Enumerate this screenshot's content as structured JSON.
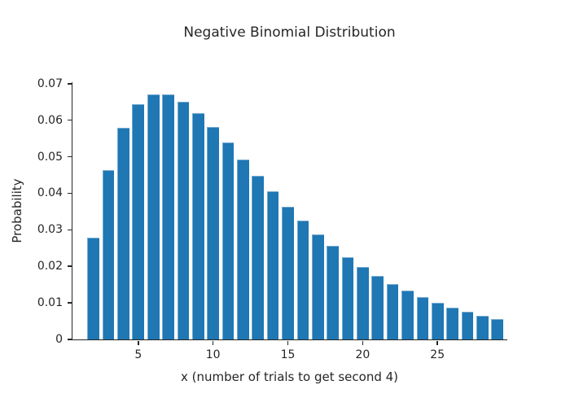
{
  "chart_data": {
    "type": "bar",
    "title": "Negative Binomial Distribution",
    "xlabel": "x (number of trials to get second 4)",
    "ylabel": "Probability",
    "x": [
      2,
      3,
      4,
      5,
      6,
      7,
      8,
      9,
      10,
      11,
      12,
      13,
      14,
      15,
      16,
      17,
      18,
      19,
      20,
      21,
      22,
      23,
      24,
      25,
      26,
      27,
      28,
      29
    ],
    "values": [
      0.02778,
      0.0463,
      0.05787,
      0.0643,
      0.06698,
      0.06698,
      0.06512,
      0.06202,
      0.05814,
      0.05383,
      0.04935,
      0.04486,
      0.0405,
      0.03635,
      0.03245,
      0.02885,
      0.02554,
      0.02254,
      0.01982,
      0.01739,
      0.01522,
      0.01328,
      0.01157,
      0.01006,
      0.00874,
      0.00757,
      0.00655,
      0.00566
    ],
    "bar_width": 0.8,
    "xlim": [
      0.6,
      29.67
    ],
    "ylim": [
      0,
      0.0704
    ],
    "xticks": [
      {
        "value": 5,
        "label": "5"
      },
      {
        "value": 10,
        "label": "10"
      },
      {
        "value": 15,
        "label": "15"
      },
      {
        "value": 20,
        "label": "20"
      },
      {
        "value": 25,
        "label": "25"
      }
    ],
    "yticks": [
      {
        "value": 0.0,
        "label": "0"
      },
      {
        "value": 0.01,
        "label": "0.01"
      },
      {
        "value": 0.02,
        "label": "0.02"
      },
      {
        "value": 0.03,
        "label": "0.03"
      },
      {
        "value": 0.04,
        "label": "0.04"
      },
      {
        "value": 0.05,
        "label": "0.05"
      },
      {
        "value": 0.06,
        "label": "0.06"
      },
      {
        "value": 0.07,
        "label": "0.07"
      }
    ],
    "grid": false,
    "bar_color": "#1f77b4",
    "axis_color": "#262626",
    "text_color": "#262626",
    "background_color": "#ffffff"
  }
}
